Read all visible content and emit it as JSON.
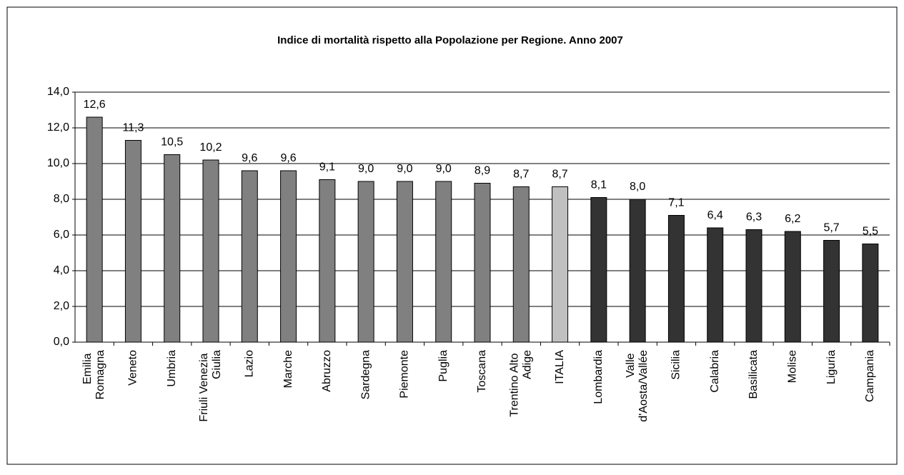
{
  "chart_data": {
    "type": "bar",
    "title": "Indice di mortalità rispetto alla Popolazione per Regione. Anno 2007",
    "categories": [
      "Emilia Romagna",
      "Veneto",
      "Umbria",
      "Friuli Venezia Giulia",
      "Lazio",
      "Marche",
      "Abruzzo",
      "Sardegna",
      "Piemonte",
      "Puglia",
      "Toscana",
      "Trentino Alto Adige",
      "ITALIA",
      "Lombardia",
      "Valle d'Aosta/Vallée",
      "Sicilia",
      "Calabria",
      "Basilicata",
      "Molise",
      "Liguria",
      "Campania"
    ],
    "values": [
      12.6,
      11.3,
      10.5,
      10.2,
      9.6,
      9.6,
      9.1,
      9.0,
      9.0,
      9.0,
      8.9,
      8.7,
      8.7,
      8.1,
      8.0,
      7.1,
      6.4,
      6.3,
      6.2,
      5.7,
      5.5
    ],
    "value_labels": [
      "12,6",
      "11,3",
      "10,5",
      "10,2",
      "9,6",
      "9,6",
      "9,1",
      "9,0",
      "9,0",
      "9,0",
      "8,9",
      "8,7",
      "8,7",
      "8,1",
      "8,0",
      "7,1",
      "6,4",
      "6,3",
      "6,2",
      "5,7",
      "5,5"
    ],
    "colors": [
      "#808080",
      "#808080",
      "#808080",
      "#808080",
      "#808080",
      "#808080",
      "#808080",
      "#808080",
      "#808080",
      "#808080",
      "#808080",
      "#808080",
      "#c0c0c0",
      "#333333",
      "#333333",
      "#333333",
      "#333333",
      "#333333",
      "#333333",
      "#333333",
      "#333333"
    ],
    "ylim": [
      0,
      14
    ],
    "yticks": [
      {
        "value": 0,
        "label": "0,0"
      },
      {
        "value": 2,
        "label": "2,0"
      },
      {
        "value": 4,
        "label": "4,0"
      },
      {
        "value": 6,
        "label": "6,0"
      },
      {
        "value": 8,
        "label": "8,0"
      },
      {
        "value": 10,
        "label": "10,0"
      },
      {
        "value": 12,
        "label": "12,0"
      },
      {
        "value": 14,
        "label": "14,0"
      }
    ],
    "grid": true
  }
}
